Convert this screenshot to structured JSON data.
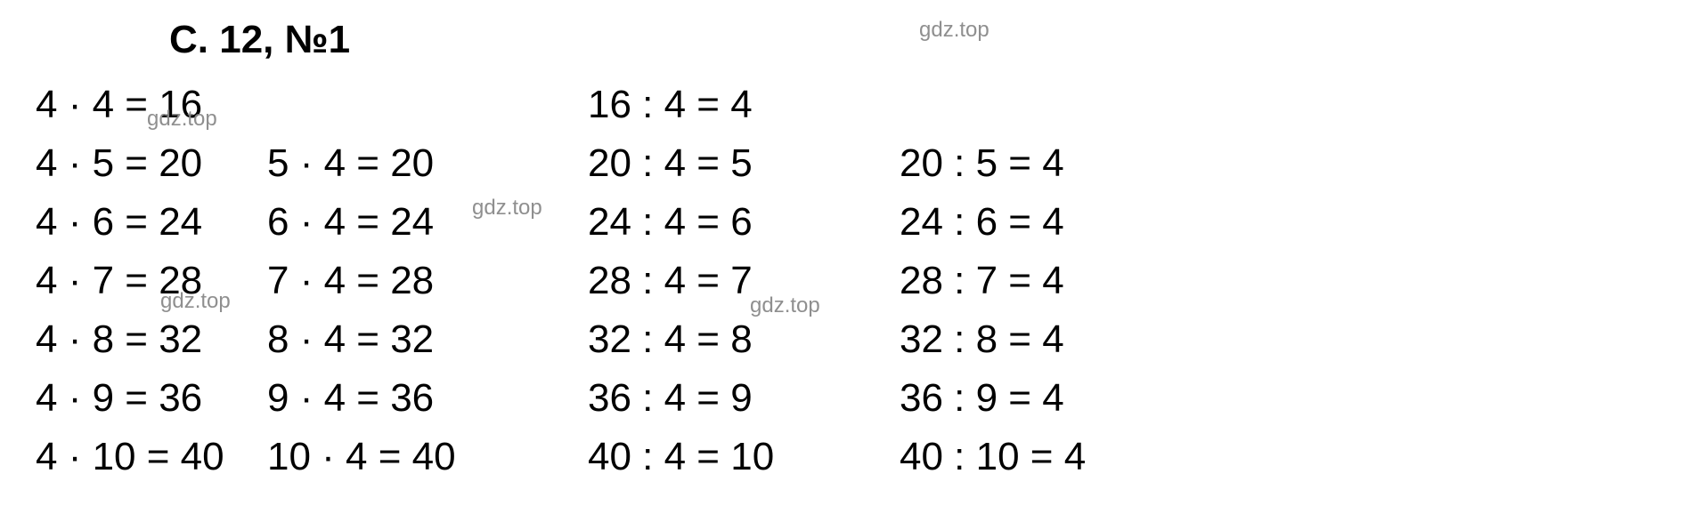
{
  "title": "С. 12, №1",
  "columns": {
    "col1": [
      "4 · 4 = 16",
      "4 · 5 = 20",
      "4 · 6 = 24",
      "4 · 7 = 28",
      "4 · 8 = 32",
      "4 · 9 = 36",
      "4 · 10 = 40"
    ],
    "col2": [
      "",
      "5 · 4 = 20",
      "6 · 4 = 24",
      "7 · 4 = 28",
      "8 · 4 = 32",
      "9 · 4 = 36",
      "10 · 4 = 40"
    ],
    "col3": [
      "16 : 4 = 4",
      "20 : 4 = 5",
      "24 : 4 = 6",
      "28 : 4 = 7",
      "32 : 4 = 8",
      "36 : 4 = 9",
      "40 : 4 = 10"
    ],
    "col4": [
      "",
      "20 : 5 = 4",
      "24 : 6 = 4",
      "28 : 7 = 4",
      "32 : 8 = 4",
      "36 : 9 = 4",
      "40 : 10 = 4"
    ]
  },
  "watermarks": {
    "text": "gdz.top",
    "positions": [
      "wm1",
      "wm2",
      "wm3",
      "wm4",
      "wm5"
    ]
  },
  "styling": {
    "background_color": "#ffffff",
    "text_color": "#000000",
    "watermark_color": "#8a8a8a",
    "title_fontsize": 44,
    "equation_fontsize": 44,
    "watermark_fontsize": 24,
    "font_family": "Arial, Helvetica, sans-serif"
  }
}
